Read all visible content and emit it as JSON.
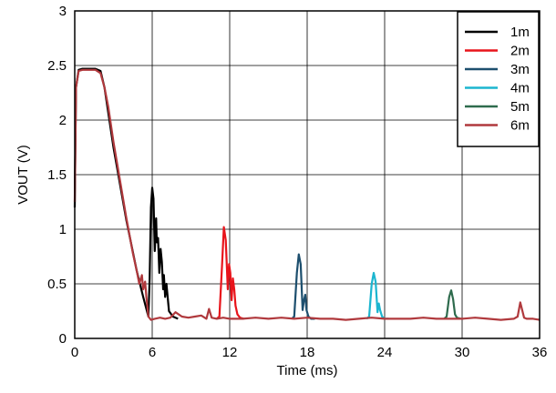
{
  "chart_data": {
    "type": "line",
    "xlabel": "Time (ms)",
    "ylabel": "VOUT (V)",
    "xlim": [
      0,
      36
    ],
    "ylim": [
      0,
      3
    ],
    "xticks": [
      "0",
      "6",
      "12",
      "18",
      "24",
      "30",
      "36"
    ],
    "yticks": [
      "0",
      "0.5",
      "1",
      "1.5",
      "2",
      "2.5",
      "3"
    ],
    "grid": true,
    "legend_position": "top-right",
    "series": [
      {
        "name": "1m",
        "color": "#000000",
        "x": [
          0,
          0.1,
          0.3,
          0.6,
          1.0,
          1.6,
          2.0,
          2.3,
          3.0,
          4.0,
          4.8,
          5.3,
          5.7,
          5.8,
          5.9,
          6.0,
          6.1,
          6.2,
          6.3,
          6.35,
          6.45,
          6.55,
          6.65,
          6.75,
          6.85,
          6.9,
          7.0,
          7.1,
          7.3,
          7.6,
          8.0
        ],
        "y": [
          1.2,
          2.3,
          2.46,
          2.47,
          2.47,
          2.47,
          2.45,
          2.3,
          1.75,
          1.08,
          0.62,
          0.38,
          0.2,
          0.55,
          1.2,
          1.38,
          1.28,
          0.8,
          1.1,
          0.88,
          0.92,
          0.6,
          0.82,
          0.7,
          0.45,
          0.58,
          0.38,
          0.5,
          0.25,
          0.2,
          0.18
        ]
      },
      {
        "name": "2m",
        "color": "#e8141b",
        "x": [
          11.0,
          11.2,
          11.4,
          11.55,
          11.7,
          11.85,
          11.95,
          12.05,
          12.15,
          12.25,
          12.35,
          12.45,
          12.6,
          12.8,
          13.1
        ],
        "y": [
          0.18,
          0.2,
          0.65,
          1.02,
          0.9,
          0.45,
          0.68,
          0.6,
          0.35,
          0.55,
          0.45,
          0.3,
          0.22,
          0.19,
          0.18
        ]
      },
      {
        "name": "3m",
        "color": "#1d4f6e",
        "x": [
          16.8,
          17.0,
          17.2,
          17.35,
          17.5,
          17.65,
          17.75,
          17.85,
          17.95,
          18.1,
          18.3,
          18.6
        ],
        "y": [
          0.18,
          0.2,
          0.6,
          0.77,
          0.68,
          0.26,
          0.35,
          0.4,
          0.26,
          0.2,
          0.18,
          0.18
        ]
      },
      {
        "name": "4m",
        "color": "#1cb5cf",
        "x": [
          22.6,
          22.8,
          23.0,
          23.15,
          23.3,
          23.45,
          23.55,
          23.65,
          23.8,
          24.0,
          24.3
        ],
        "y": [
          0.18,
          0.2,
          0.5,
          0.6,
          0.52,
          0.24,
          0.32,
          0.26,
          0.2,
          0.18,
          0.18
        ]
      },
      {
        "name": "5m",
        "color": "#2e6b4d",
        "x": [
          28.6,
          28.8,
          29.0,
          29.15,
          29.3,
          29.45,
          29.6,
          29.9
        ],
        "y": [
          0.18,
          0.2,
          0.38,
          0.44,
          0.36,
          0.22,
          0.19,
          0.18
        ]
      },
      {
        "name": "6m",
        "color": "#b0393d",
        "x": [
          0,
          0.1,
          0.3,
          0.6,
          1.0,
          1.6,
          2.0,
          2.3,
          2.6,
          3.0,
          3.5,
          4.0,
          4.5,
          4.8,
          5.0,
          5.2,
          5.3,
          5.45,
          5.55,
          5.7,
          5.9,
          6.2,
          6.6,
          7.0,
          7.4,
          7.8,
          8.3,
          8.8,
          9.3,
          9.8,
          10.2,
          10.4,
          10.6,
          11.0,
          11.5,
          12.0,
          13.0,
          14.0,
          15.0,
          16.0,
          17.0,
          18.0,
          19.0,
          20.0,
          21.0,
          22.0,
          23.0,
          24.0,
          25.0,
          26.0,
          27.0,
          28.0,
          29.0,
          30.0,
          31.0,
          32.0,
          33.0,
          34.0,
          34.3,
          34.5,
          34.65,
          34.8,
          35.0,
          35.5,
          36.0
        ],
        "y": [
          1.25,
          2.3,
          2.45,
          2.46,
          2.46,
          2.46,
          2.43,
          2.3,
          2.12,
          1.8,
          1.45,
          1.1,
          0.78,
          0.62,
          0.5,
          0.58,
          0.45,
          0.52,
          0.38,
          0.2,
          0.17,
          0.18,
          0.19,
          0.18,
          0.19,
          0.24,
          0.2,
          0.19,
          0.2,
          0.21,
          0.18,
          0.27,
          0.19,
          0.18,
          0.19,
          0.18,
          0.18,
          0.19,
          0.18,
          0.19,
          0.18,
          0.19,
          0.18,
          0.18,
          0.17,
          0.18,
          0.19,
          0.18,
          0.18,
          0.18,
          0.19,
          0.18,
          0.18,
          0.18,
          0.19,
          0.18,
          0.17,
          0.18,
          0.2,
          0.33,
          0.26,
          0.19,
          0.18,
          0.18,
          0.17
        ]
      }
    ]
  }
}
